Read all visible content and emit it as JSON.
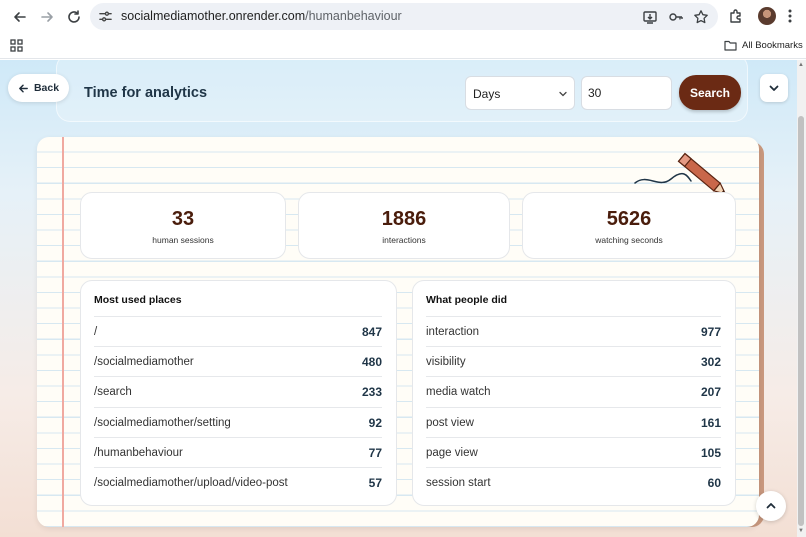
{
  "browser": {
    "url_host": "socialmediamother.onrender.com",
    "url_path": "/humanbehaviour",
    "icons": [
      "back-arrow-icon",
      "forward-arrow-icon",
      "reload-icon",
      "site-info-icon",
      "install-app-icon",
      "password-key-icon",
      "bookmark-star-icon",
      "extensions-icon",
      "profile-avatar",
      "more-menu-icon",
      "apps-grid-icon",
      "folder-icon"
    ],
    "bookmarks_label": "All Bookmarks"
  },
  "header": {
    "back_label": "Back",
    "title": "Time for analytics",
    "period_select": "Days",
    "period_value": "30",
    "search_label": "Search"
  },
  "stats": [
    {
      "value": "33",
      "label": "human sessions"
    },
    {
      "value": "1886",
      "label": "interactions"
    },
    {
      "value": "5626",
      "label": "watching seconds"
    }
  ],
  "places": {
    "title": "Most used places",
    "rows": [
      {
        "name": "/",
        "count": "847"
      },
      {
        "name": "/socialmediamother",
        "count": "480"
      },
      {
        "name": "/search",
        "count": "233"
      },
      {
        "name": "/socialmediamother/setting",
        "count": "92"
      },
      {
        "name": "/humanbehaviour",
        "count": "77"
      },
      {
        "name": "/socialmediamother/upload/video-post",
        "count": "57"
      }
    ]
  },
  "actions": {
    "title": "What people did",
    "rows": [
      {
        "name": "interaction",
        "count": "977"
      },
      {
        "name": "visibility",
        "count": "302"
      },
      {
        "name": "media watch",
        "count": "207"
      },
      {
        "name": "post view",
        "count": "161"
      },
      {
        "name": "page view",
        "count": "105"
      },
      {
        "name": "session start",
        "count": "60"
      }
    ]
  },
  "colors": {
    "accent_brown": "#6b2a14",
    "stat_value": "#4a1d0c",
    "row_count": "#1f3547",
    "notebook_paper": "#fffdf7",
    "notebook_rule": "#d7e8f1",
    "margin_red": "#f0a9a0"
  }
}
